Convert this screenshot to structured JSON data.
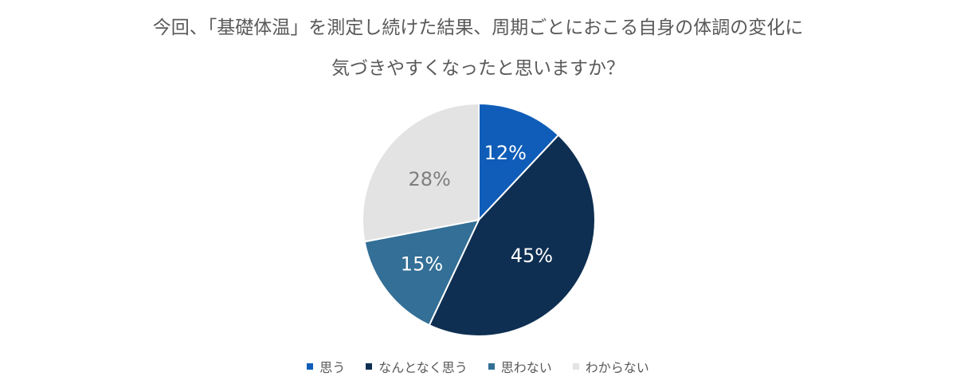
{
  "chart_data": {
    "type": "pie",
    "title_line1": "今回、「基礎体温」を測定し続けた結果、周期ごとにおこる自身の体調の変化に",
    "title_line2": "気づきやすくなったと思いますか？",
    "categories": [
      "思う",
      "なんとなく思う",
      "思わない",
      "わからない"
    ],
    "values": [
      12,
      45,
      15,
      28
    ],
    "labels": [
      "12%",
      "45%",
      "15%",
      "28%"
    ],
    "unit": "%",
    "colors": [
      "#0F5DB8",
      "#0E2F52",
      "#336F96",
      "#E3E3E3"
    ],
    "label_colors": [
      "#FFFFFF",
      "#FFFFFF",
      "#FFFFFF",
      "#7F7F7F"
    ],
    "start_angle": "12 o'clock",
    "direction": "clockwise",
    "legend_position": "bottom"
  }
}
